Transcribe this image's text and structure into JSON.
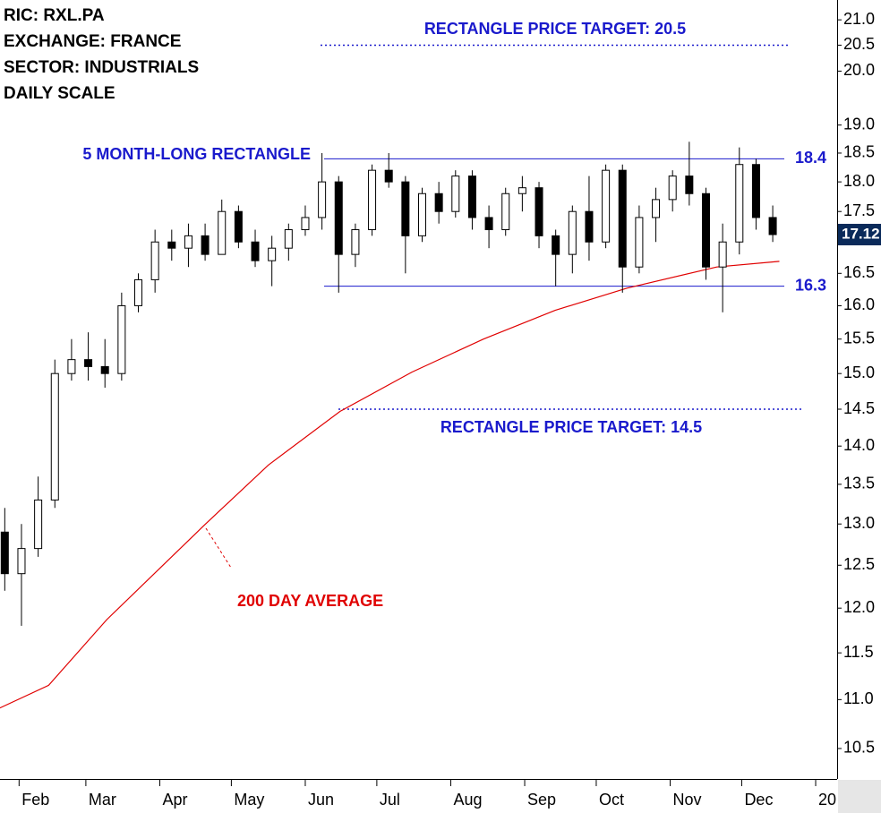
{
  "chart_data": {
    "type": "candlestick",
    "header_lines": [
      "RIC: RXL.PA",
      "EXCHANGE: FRANCE",
      "SECTOR: INDUSTRIALS",
      "DAILY SCALE"
    ],
    "log_scale": true,
    "xlim": [
      24,
      375
    ],
    "ylim": [
      10.2,
      21.4
    ],
    "xticks": [
      {
        "value": 32,
        "label": "Feb"
      },
      {
        "value": 60,
        "label": "Mar"
      },
      {
        "value": 91,
        "label": "Apr"
      },
      {
        "value": 121,
        "label": "May"
      },
      {
        "value": 152,
        "label": "Jun"
      },
      {
        "value": 182,
        "label": "Jul"
      },
      {
        "value": 213,
        "label": "Aug"
      },
      {
        "value": 244,
        "label": "Sep"
      },
      {
        "value": 274,
        "label": "Oct"
      },
      {
        "value": 305,
        "label": "Nov"
      },
      {
        "value": 335,
        "label": "Dec"
      },
      {
        "value": 366,
        "label": "20"
      }
    ],
    "yticks": [
      {
        "value": 21,
        "label": "21.0"
      },
      20.5,
      {
        "value": 20,
        "label": "20.0"
      },
      {
        "value": 19,
        "label": "19.0"
      },
      18.5,
      {
        "value": 18,
        "label": "18.0"
      },
      17.5,
      16.5,
      {
        "value": 16,
        "label": "16.0"
      },
      15.5,
      {
        "value": 15,
        "label": "15.0"
      },
      14.5,
      {
        "value": 14,
        "label": "14.0"
      },
      13.5,
      {
        "value": 13,
        "label": "13.0"
      },
      12.5,
      {
        "value": 12,
        "label": "12.0"
      },
      11.5,
      {
        "value": 11,
        "label": "11.0"
      },
      10.5
    ],
    "x": [
      26,
      33,
      40,
      47,
      54,
      61,
      68,
      75,
      82,
      89,
      96,
      103,
      110,
      117,
      124,
      131,
      138,
      145,
      152,
      159,
      166,
      173,
      180,
      187,
      194,
      201,
      208,
      215,
      222,
      229,
      236,
      243,
      250,
      257,
      264,
      271,
      278,
      285,
      292,
      299,
      306,
      313,
      320,
      327,
      334,
      341,
      348
    ],
    "open": [
      12.9,
      12.4,
      12.7,
      13.3,
      15.0,
      15.2,
      15.1,
      15.0,
      16.0,
      16.4,
      17.0,
      16.9,
      17.1,
      16.8,
      17.5,
      17.0,
      16.7,
      16.9,
      17.2,
      17.4,
      18.0,
      16.8,
      17.2,
      18.2,
      18.0,
      17.1,
      17.8,
      17.5,
      18.1,
      17.4,
      17.2,
      17.8,
      17.9,
      17.1,
      16.8,
      17.5,
      17.0,
      18.2,
      16.6,
      17.4,
      17.7,
      18.1,
      17.8,
      16.6,
      17.0,
      18.3,
      17.4
    ],
    "high": [
      13.2,
      13.0,
      13.6,
      15.2,
      15.5,
      15.6,
      15.5,
      16.2,
      16.5,
      17.2,
      17.2,
      17.3,
      17.3,
      17.7,
      17.6,
      17.2,
      17.1,
      17.3,
      17.6,
      18.5,
      18.1,
      17.3,
      18.3,
      18.5,
      18.1,
      17.9,
      18.0,
      18.2,
      18.2,
      17.6,
      17.9,
      18.1,
      18.0,
      17.2,
      17.6,
      18.1,
      18.3,
      18.3,
      17.6,
      17.9,
      18.2,
      18.7,
      17.9,
      17.3,
      18.6,
      18.4,
      17.6
    ],
    "low": [
      12.2,
      11.8,
      12.6,
      13.2,
      14.9,
      14.9,
      14.8,
      14.9,
      15.9,
      16.2,
      16.7,
      16.6,
      16.7,
      16.8,
      16.9,
      16.6,
      16.3,
      16.7,
      17.1,
      17.2,
      16.2,
      16.6,
      17.1,
      17.9,
      16.5,
      17.0,
      17.3,
      17.4,
      17.2,
      16.9,
      17.1,
      17.5,
      16.9,
      16.3,
      16.5,
      16.7,
      16.9,
      16.2,
      16.5,
      17.0,
      17.5,
      17.6,
      16.4,
      15.9,
      16.8,
      17.2,
      17.0
    ],
    "close": [
      12.4,
      12.7,
      13.3,
      15.0,
      15.2,
      15.1,
      15.0,
      16.0,
      16.4,
      17.0,
      16.9,
      17.1,
      16.8,
      17.5,
      17.0,
      16.7,
      16.9,
      17.2,
      17.4,
      18.0,
      16.8,
      17.2,
      18.2,
      18.0,
      17.1,
      17.8,
      17.5,
      18.1,
      17.4,
      17.2,
      17.8,
      17.9,
      17.1,
      16.8,
      17.5,
      17.0,
      18.2,
      16.6,
      17.4,
      17.7,
      18.1,
      17.8,
      16.6,
      17.0,
      18.3,
      17.4,
      17.12
    ],
    "up_color": "#ffffff",
    "down_color": "#000000",
    "moving_average": {
      "label": "200 DAY AVERAGE",
      "color": "#e00000",
      "x": [
        23.7,
        44.4,
        68.8,
        110.2,
        136.5,
        166.6,
        196.7,
        226.7,
        256.8,
        286.9,
        324.5,
        350.8
      ],
      "values": [
        10.91,
        11.15,
        11.87,
        13.0,
        13.75,
        14.47,
        15.02,
        15.5,
        15.93,
        16.27,
        16.6,
        16.69
      ]
    },
    "rectangle_label": "5 MONTH-LONG RECTANGLE",
    "rectangle_levels": [
      18.4,
      16.3
    ],
    "level_color": "#1a1acc",
    "targets": [
      {
        "value": 20.5,
        "label": "RECTANGLE PRICE TARGET: 20.5"
      },
      {
        "value": 14.5,
        "label": "RECTANGLE PRICE TARGET: 14.5"
      }
    ],
    "last_price": 17.12,
    "last_price_color": "#0a2a5a"
  }
}
